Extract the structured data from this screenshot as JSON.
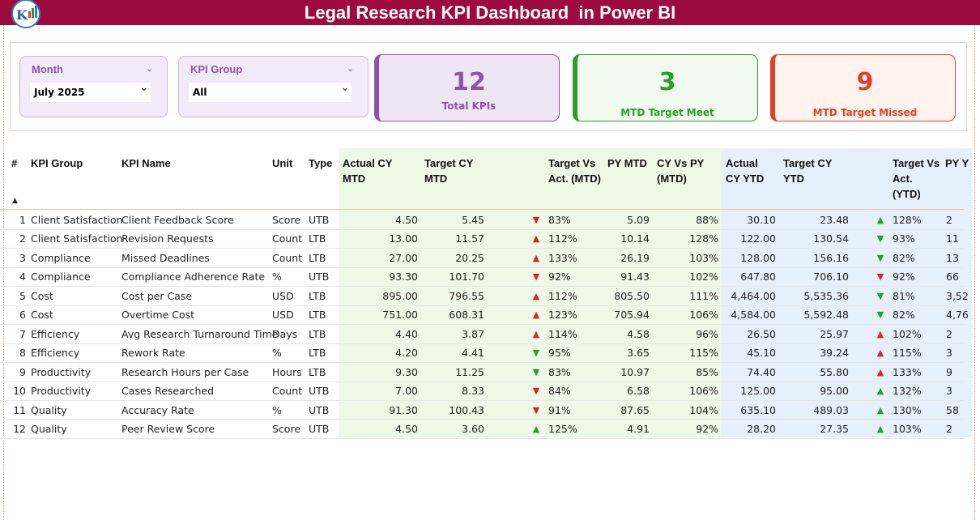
{
  "header": {
    "title": "Legal Research KPI Dashboard  in Power BI"
  },
  "filters": [
    {
      "label": "Month",
      "value": "July 2025"
    },
    {
      "label": "KPI Group",
      "value": "All"
    }
  ],
  "cards": [
    {
      "value": "12",
      "label": "Total KPIs",
      "color": "#8a55a8",
      "bg": "#efe6f5"
    },
    {
      "value": "3",
      "label": "MTD Target Meet",
      "color": "#2a9d2a",
      "bg": "#f1fbef"
    },
    {
      "value": "9",
      "label": "MTD Target Missed",
      "color": "#e0402a",
      "bg": "#fff3ee"
    }
  ],
  "table": {
    "columns": [
      "#",
      "KPI Group",
      "KPI Name",
      "Unit",
      "Type",
      "Actual CY MTD",
      "Target CY MTD",
      "Target Vs Act. (MTD)",
      "PY MTD",
      "CY Vs PY (MTD)",
      "Actual CY YTD",
      "Target CY YTD",
      "Target Vs Act. (YTD)",
      "PY Y"
    ],
    "rows": [
      {
        "cells": [
          "1",
          "Client Satisfaction",
          "Client Feedback Score",
          "Score",
          "UTB",
          "4.50",
          "5.45",
          "▼",
          "83%",
          "5.09",
          "88%",
          "30.10",
          "23.48",
          "▲",
          "128%",
          "2"
        ],
        "mtd_color": "#e02020",
        "ytd_color": "#2a9d2a"
      },
      {
        "cells": [
          "2",
          "Client Satisfaction",
          "Revision Requests",
          "Count",
          "LTB",
          "13.00",
          "11.57",
          "▲",
          "112%",
          "10.14",
          "128%",
          "122.00",
          "130.54",
          "▼",
          "93%",
          "11"
        ],
        "mtd_color": "#e02020",
        "ytd_color": "#2a9d2a"
      },
      {
        "cells": [
          "3",
          "Compliance",
          "Missed Deadlines",
          "Count",
          "LTB",
          "27.00",
          "20.25",
          "▲",
          "133%",
          "26.19",
          "103%",
          "128.00",
          "156.16",
          "▼",
          "82%",
          "13"
        ],
        "mtd_color": "#e02020",
        "ytd_color": "#2a9d2a"
      },
      {
        "cells": [
          "4",
          "Compliance",
          "Compliance Adherence Rate",
          "%",
          "UTB",
          "93.30",
          "101.70",
          "▼",
          "92%",
          "91.43",
          "102%",
          "647.80",
          "706.10",
          "▼",
          "92%",
          "66"
        ],
        "mtd_color": "#e02020",
        "ytd_color": "#e02020"
      },
      {
        "cells": [
          "5",
          "Cost",
          "Cost per Case",
          "USD",
          "LTB",
          "895.00",
          "796.55",
          "▲",
          "112%",
          "805.50",
          "111%",
          "4,464.00",
          "5,535.36",
          "▼",
          "81%",
          "3,52"
        ],
        "mtd_color": "#e02020",
        "ytd_color": "#2a9d2a"
      },
      {
        "cells": [
          "6",
          "Cost",
          "Overtime Cost",
          "USD",
          "LTB",
          "751.00",
          "608.31",
          "▲",
          "123%",
          "705.94",
          "106%",
          "4,584.00",
          "5,592.48",
          "▼",
          "82%",
          "4,76"
        ],
        "mtd_color": "#e02020",
        "ytd_color": "#2a9d2a"
      },
      {
        "cells": [
          "7",
          "Efficiency",
          "Avg Research Turnaround Time",
          "Days",
          "LTB",
          "4.40",
          "3.87",
          "▲",
          "114%",
          "4.58",
          "96%",
          "26.50",
          "25.97",
          "▲",
          "102%",
          "2"
        ],
        "mtd_color": "#e02020",
        "ytd_color": "#e02020"
      },
      {
        "cells": [
          "8",
          "Efficiency",
          "Rework Rate",
          "%",
          "LTB",
          "4.20",
          "4.41",
          "▼",
          "95%",
          "3.65",
          "115%",
          "45.10",
          "39.24",
          "▲",
          "115%",
          "3"
        ],
        "mtd_color": "#2a9d2a",
        "ytd_color": "#e02020"
      },
      {
        "cells": [
          "9",
          "Productivity",
          "Research Hours per Case",
          "Hours",
          "LTB",
          "9.30",
          "11.25",
          "▼",
          "83%",
          "10.97",
          "85%",
          "74.40",
          "55.80",
          "▲",
          "133%",
          "9"
        ],
        "mtd_color": "#2a9d2a",
        "ytd_color": "#e02020"
      },
      {
        "cells": [
          "10",
          "Productivity",
          "Cases Researched",
          "Count",
          "UTB",
          "7.00",
          "8.33",
          "▼",
          "84%",
          "6.58",
          "106%",
          "125.00",
          "95.00",
          "▲",
          "132%",
          "3"
        ],
        "mtd_color": "#e02020",
        "ytd_color": "#2a9d2a"
      },
      {
        "cells": [
          "11",
          "Quality",
          "Accuracy Rate",
          "%",
          "UTB",
          "91.30",
          "100.43",
          "▼",
          "91%",
          "87.65",
          "104%",
          "635.10",
          "489.03",
          "▲",
          "130%",
          "58"
        ],
        "mtd_color": "#e02020",
        "ytd_color": "#2a9d2a"
      },
      {
        "cells": [
          "12",
          "Quality",
          "Peer Review Score",
          "Score",
          "UTB",
          "4.50",
          "3.60",
          "▲",
          "125%",
          "4.91",
          "92%",
          "28.20",
          "27.35",
          "▲",
          "103%",
          "2"
        ],
        "mtd_color": "#2a9d2a",
        "ytd_color": "#2a9d2a"
      }
    ]
  }
}
